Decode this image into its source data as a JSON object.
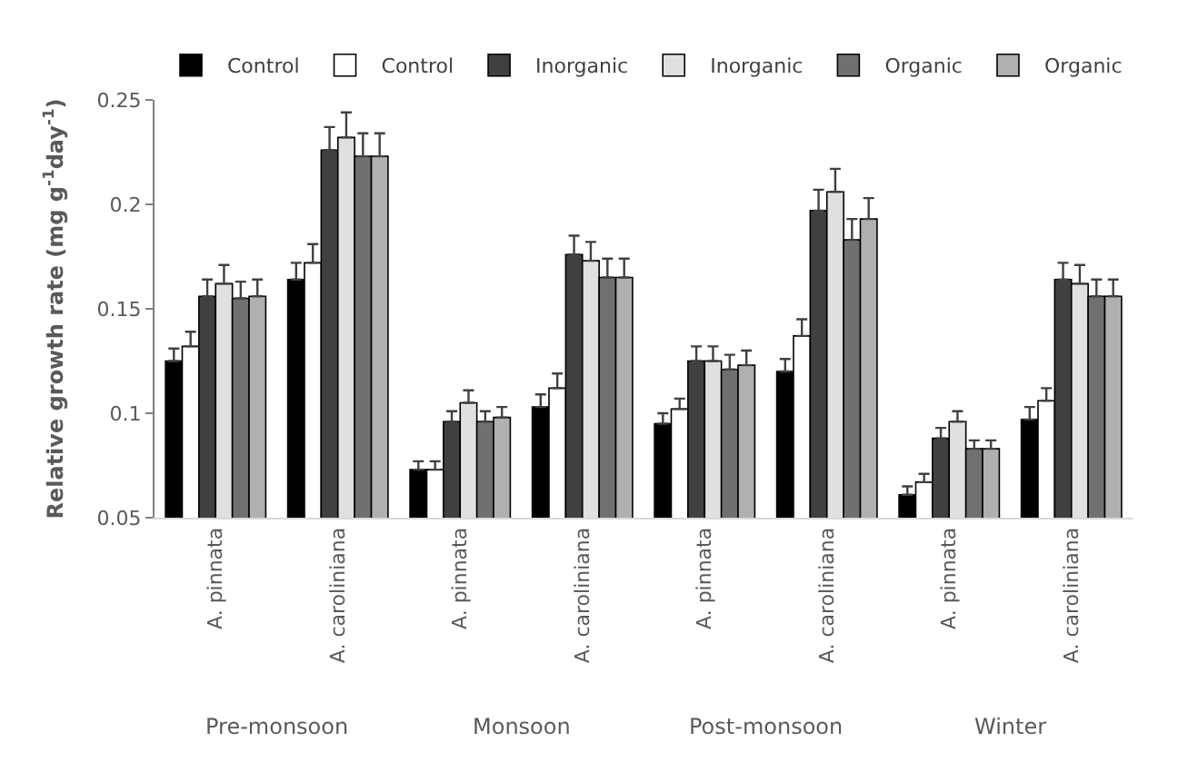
{
  "chart_data": {
    "type": "bar",
    "ylabel": "Relative growth rate (mg g$^{-1}$day$^{-1}$)",
    "categories": [
      "A. pinnata",
      "A. caroliniana",
      "A. pinnata",
      "A. caroliniana",
      "A. pinnata",
      "A. caroliniana",
      "A. pinnata",
      "A. caroliniana"
    ],
    "annotations": [
      "Pre-monsoon",
      "Monsoon",
      "Post-monsoon",
      "Winter"
    ],
    "series": [
      {
        "name": "Control",
        "color": "#000000",
        "values": [
          0.125,
          0.164,
          0.073,
          0.103,
          0.095,
          0.12,
          0.061,
          0.097
        ],
        "errors": [
          0.006,
          0.008,
          0.004,
          0.006,
          0.005,
          0.006,
          0.004,
          0.006
        ]
      },
      {
        "name": "Control",
        "color": "#ffffff",
        "values": [
          0.132,
          0.172,
          0.073,
          0.112,
          0.102,
          0.137,
          0.067,
          0.106
        ],
        "errors": [
          0.007,
          0.009,
          0.004,
          0.007,
          0.005,
          0.008,
          0.004,
          0.006
        ]
      },
      {
        "name": "Inorganic",
        "color": "#404040",
        "values": [
          0.156,
          0.226,
          0.096,
          0.176,
          0.125,
          0.197,
          0.088,
          0.164
        ],
        "errors": [
          0.008,
          0.011,
          0.005,
          0.009,
          0.007,
          0.01,
          0.005,
          0.008
        ]
      },
      {
        "name": "Inorganic",
        "color": "#e0e0e0",
        "values": [
          0.162,
          0.232,
          0.105,
          0.173,
          0.125,
          0.206,
          0.096,
          0.162
        ],
        "errors": [
          0.009,
          0.012,
          0.006,
          0.009,
          0.007,
          0.011,
          0.005,
          0.009
        ]
      },
      {
        "name": "Organic",
        "color": "#707070",
        "values": [
          0.155,
          0.223,
          0.096,
          0.165,
          0.121,
          0.183,
          0.083,
          0.156
        ],
        "errors": [
          0.008,
          0.011,
          0.005,
          0.009,
          0.007,
          0.01,
          0.004,
          0.008
        ]
      },
      {
        "name": "Organic",
        "color": "#b0b0b0",
        "values": [
          0.156,
          0.223,
          0.098,
          0.165,
          0.123,
          0.193,
          0.083,
          0.156
        ],
        "errors": [
          0.008,
          0.011,
          0.005,
          0.009,
          0.007,
          0.01,
          0.004,
          0.008
        ]
      }
    ],
    "ylim": [
      0.05,
      0.25
    ],
    "yticks": [
      0.05,
      0.1,
      0.15,
      0.2,
      0.25
    ],
    "legend": "top"
  }
}
